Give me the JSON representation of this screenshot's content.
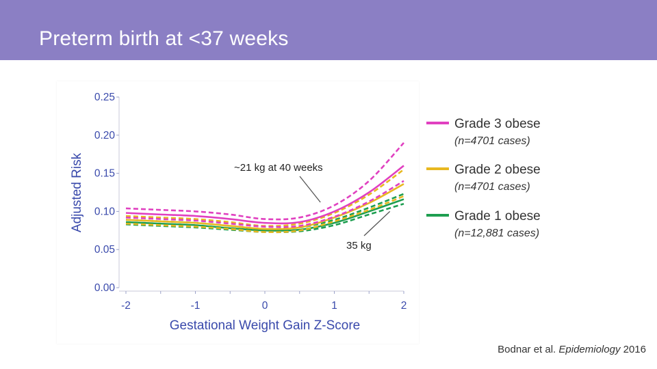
{
  "header": {
    "title": "Preterm birth at <37 weeks"
  },
  "chart_data": {
    "type": "line",
    "xlabel": "Gestational Weight Gain Z-Score",
    "ylabel": "Adjusted Risk",
    "xlim": [
      -2,
      2
    ],
    "ylim": [
      0,
      0.25
    ],
    "x_ticks": [
      "-2",
      "-1",
      "0",
      "1",
      "2"
    ],
    "y_ticks": [
      "0.00",
      "0.05",
      "0.10",
      "0.15",
      "0.20",
      "0.25"
    ],
    "x": [
      -2,
      -1.5,
      -1,
      -0.5,
      0,
      0.5,
      1,
      1.5,
      2
    ],
    "series": [
      {
        "name": "Grade 3 obese",
        "sub": "(n=4701 cases)",
        "color": "#e040c0",
        "values": [
          0.098,
          0.096,
          0.094,
          0.09,
          0.085,
          0.086,
          0.1,
          0.125,
          0.16
        ],
        "lower": [
          0.092,
          0.09,
          0.088,
          0.084,
          0.08,
          0.081,
          0.093,
          0.113,
          0.14
        ],
        "upper": [
          0.104,
          0.102,
          0.1,
          0.096,
          0.09,
          0.092,
          0.108,
          0.14,
          0.19
        ]
      },
      {
        "name": "Grade 2 obese",
        "sub": "(n=4701 cases)",
        "color": "#e8b820",
        "values": [
          0.089,
          0.087,
          0.085,
          0.081,
          0.077,
          0.079,
          0.092,
          0.111,
          0.136
        ],
        "lower": [
          0.084,
          0.082,
          0.08,
          0.077,
          0.073,
          0.075,
          0.087,
          0.102,
          0.12
        ],
        "upper": [
          0.094,
          0.092,
          0.09,
          0.086,
          0.081,
          0.084,
          0.098,
          0.122,
          0.155
        ]
      },
      {
        "name": "Grade 1 obese",
        "sub": "(n=12,881 cases)",
        "color": "#1e9e50",
        "values": [
          0.086,
          0.084,
          0.082,
          0.078,
          0.075,
          0.076,
          0.085,
          0.1,
          0.116
        ],
        "lower": [
          0.083,
          0.081,
          0.079,
          0.076,
          0.073,
          0.074,
          0.082,
          0.096,
          0.11
        ],
        "upper": [
          0.089,
          0.087,
          0.085,
          0.081,
          0.077,
          0.079,
          0.089,
          0.105,
          0.123
        ]
      }
    ],
    "annotations": [
      {
        "text": "~21 kg at 40 weeks",
        "x": 0.8,
        "y": 0.112
      },
      {
        "text": "35 kg",
        "x": 1.8,
        "y": 0.1
      }
    ]
  },
  "citation": {
    "authors": "Bodnar et al.",
    "journal": "Epidemiology",
    "year": "2016"
  }
}
